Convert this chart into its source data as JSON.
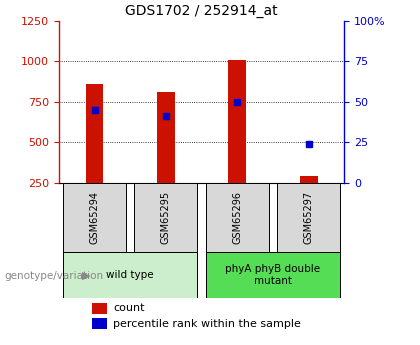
{
  "title": "GDS1702 / 252914_at",
  "samples": [
    "GSM65294",
    "GSM65295",
    "GSM65296",
    "GSM65297"
  ],
  "counts": [
    860,
    810,
    1010,
    290
  ],
  "percentile_values": [
    700,
    665,
    750,
    490
  ],
  "bar_bottom": 250,
  "ylim_left": [
    250,
    1250
  ],
  "ylim_right": [
    0,
    100
  ],
  "yticks_left": [
    250,
    500,
    750,
    1000,
    1250
  ],
  "yticks_right": [
    0,
    25,
    50,
    75,
    100
  ],
  "ytick_right_labels": [
    "0",
    "25",
    "50",
    "75",
    "100%"
  ],
  "bar_color": "#cc1100",
  "dot_color": "#0000cc",
  "group_labels": [
    "wild type",
    "phyA phyB double\nmutant"
  ],
  "group_ranges": [
    [
      0,
      1
    ],
    [
      2,
      3
    ]
  ],
  "group_colors": [
    "#cceecc",
    "#55dd55"
  ],
  "sample_box_color": "#d8d8d8",
  "legend_items": [
    "count",
    "percentile rank within the sample"
  ],
  "annotation_label": "genotype/variation"
}
